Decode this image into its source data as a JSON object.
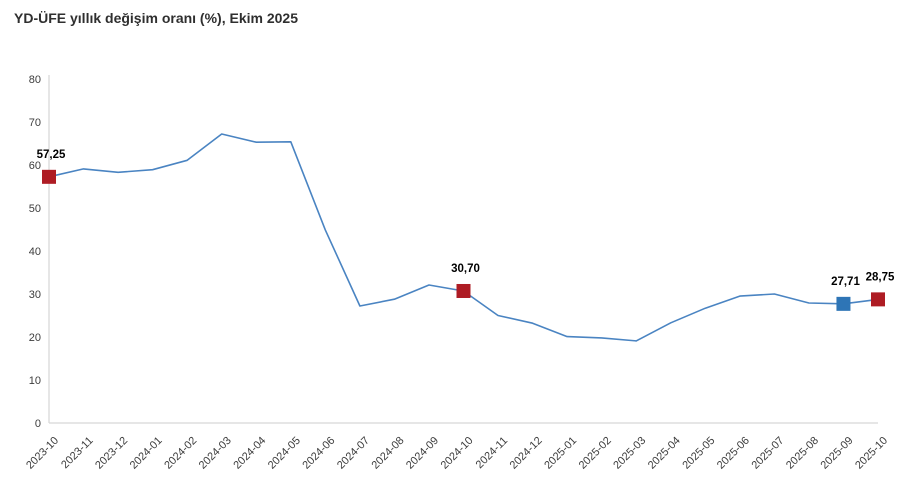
{
  "title": "YD-ÜFE yıllık değişim oranı (%), Ekim 2025",
  "colors": {
    "line": "#4a84c2",
    "marker_red": "#ae1c24",
    "marker_blue": "#2e75b6",
    "axis_line": "#d8d8d8",
    "tick_text": "#3d3d3d",
    "title_text": "#2f2f2f",
    "value_label_text": "#000000",
    "background": "#ffffff"
  },
  "chart_data": {
    "type": "line",
    "title": "YD-ÜFE yıllık değişim oranı (%), Ekim 2025",
    "x": [
      "2023-10",
      "2023-11",
      "2023-12",
      "2024-01",
      "2024-02",
      "2024-03",
      "2024-04",
      "2024-05",
      "2024-06",
      "2024-07",
      "2024-08",
      "2024-09",
      "2024-10",
      "2024-11",
      "2024-12",
      "2025-01",
      "2025-02",
      "2025-03",
      "2025-04",
      "2025-05",
      "2025-06",
      "2025-07",
      "2025-08",
      "2025-09",
      "2025-10"
    ],
    "series": [
      {
        "name": "YD-ÜFE yıllık değişim oranı (%)",
        "values": [
          57.25,
          59.1,
          58.3,
          58.9,
          61.1,
          67.2,
          65.3,
          65.4,
          44.9,
          27.2,
          28.8,
          32.1,
          30.7,
          25.0,
          23.2,
          20.1,
          19.8,
          19.1,
          23.3,
          26.7,
          29.5,
          30.0,
          27.9,
          27.71,
          28.75
        ]
      }
    ],
    "xlabel": "",
    "ylabel": "",
    "ylim": [
      0,
      80
    ],
    "yticks": [
      0,
      10,
      20,
      30,
      40,
      50,
      60,
      70,
      80
    ],
    "grid": false,
    "legend": "none",
    "annotations": [
      {
        "x": "2023-10",
        "value": 57.25,
        "label": "57,25",
        "marker": "square",
        "marker_color": "#ae1c24"
      },
      {
        "x": "2024-10",
        "value": 30.7,
        "label": "30,70",
        "marker": "square",
        "marker_color": "#ae1c24"
      },
      {
        "x": "2025-09",
        "value": 27.71,
        "label": "27,71",
        "marker": "square",
        "marker_color": "#2e75b6"
      },
      {
        "x": "2025-10",
        "value": 28.75,
        "label": "28,75",
        "marker": "square",
        "marker_color": "#ae1c24"
      }
    ]
  }
}
